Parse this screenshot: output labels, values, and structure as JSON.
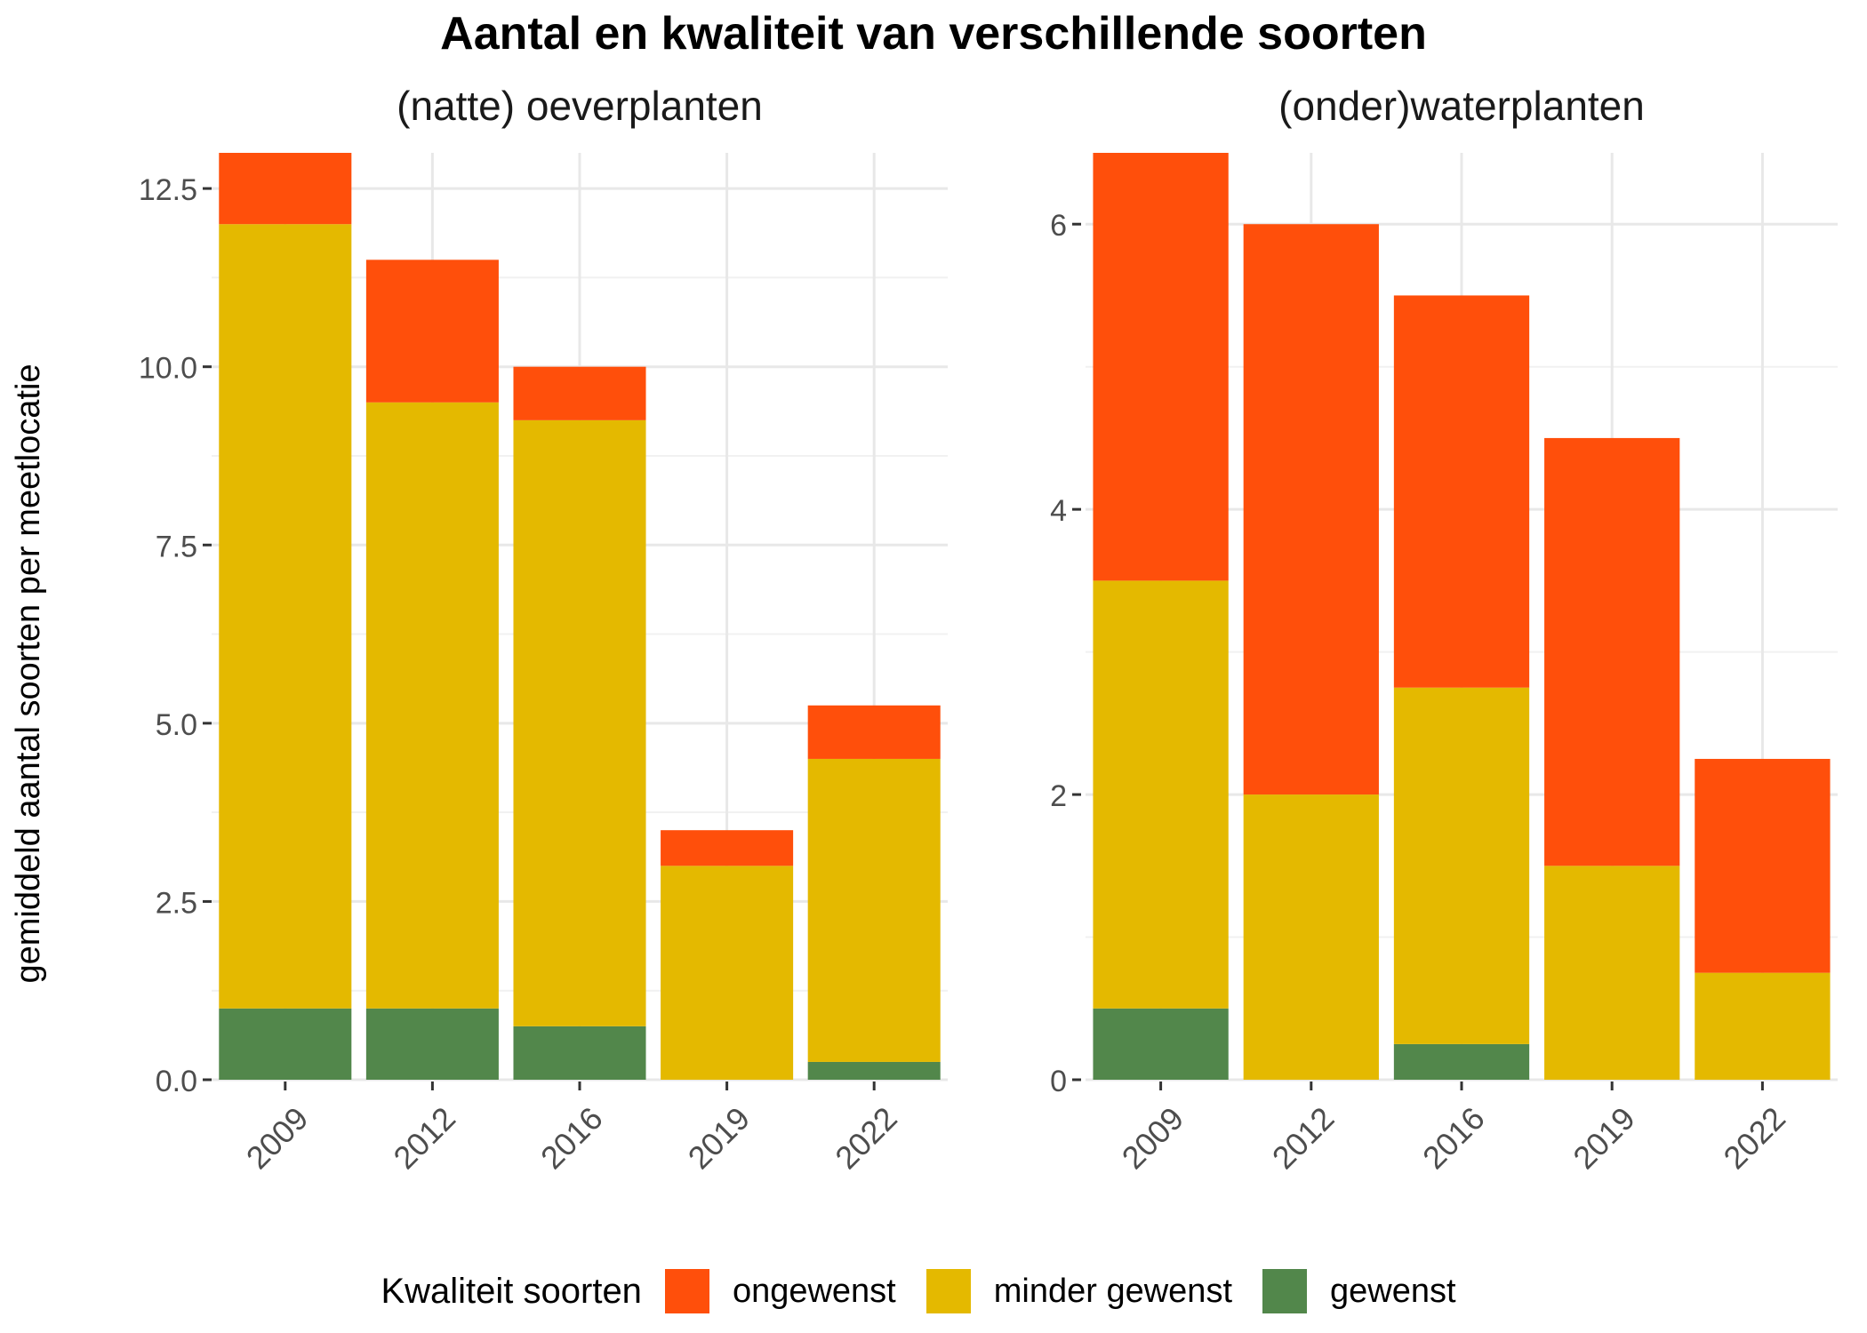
{
  "title": "Aantal en kwaliteit van verschillende soorten",
  "chart_data": {
    "type": "bar",
    "stacked": true,
    "ylabel": "gemiddeld aantal soorten per meetlocatie",
    "grid": true,
    "colors": {
      "ongewenst": "#FF4F0B",
      "minder gewenst": "#E4B900",
      "gewenst": "#52874B"
    },
    "legend": {
      "title": "Kwaliteit soorten",
      "position": "bottom",
      "entries": [
        "ongewenst",
        "minder gewenst",
        "gewenst"
      ]
    },
    "panels": [
      {
        "subtitle": "(natte) oeverplanten",
        "categories": [
          "2009",
          "2012",
          "2016",
          "2019",
          "2022"
        ],
        "ylim": [
          0,
          13
        ],
        "yticks": [
          0,
          2.5,
          5,
          7.5,
          10,
          12.5
        ],
        "ytick_labels": [
          "0.0",
          "2.5",
          "5.0",
          "7.5",
          "10.0",
          "12.5"
        ],
        "series": [
          {
            "name": "gewenst",
            "values": [
              1.0,
              1.0,
              0.75,
              0.0,
              0.25
            ]
          },
          {
            "name": "minder gewenst",
            "values": [
              11.0,
              8.5,
              8.5,
              3.0,
              4.25
            ]
          },
          {
            "name": "ongewenst",
            "values": [
              1.0,
              2.0,
              0.75,
              0.5,
              0.75
            ]
          }
        ]
      },
      {
        "subtitle": "(onder)waterplanten",
        "categories": [
          "2009",
          "2012",
          "2016",
          "2019",
          "2022"
        ],
        "ylim": [
          0,
          6.5
        ],
        "yticks": [
          0,
          2,
          4,
          6
        ],
        "ytick_labels": [
          "0",
          "2",
          "4",
          "6"
        ],
        "series": [
          {
            "name": "gewenst",
            "values": [
              0.5,
              0.0,
              0.25,
              0.0,
              0.0
            ]
          },
          {
            "name": "minder gewenst",
            "values": [
              3.0,
              2.0,
              2.5,
              1.5,
              0.75
            ]
          },
          {
            "name": "ongewenst",
            "values": [
              3.0,
              4.0,
              2.75,
              3.0,
              1.5
            ]
          }
        ]
      }
    ]
  }
}
